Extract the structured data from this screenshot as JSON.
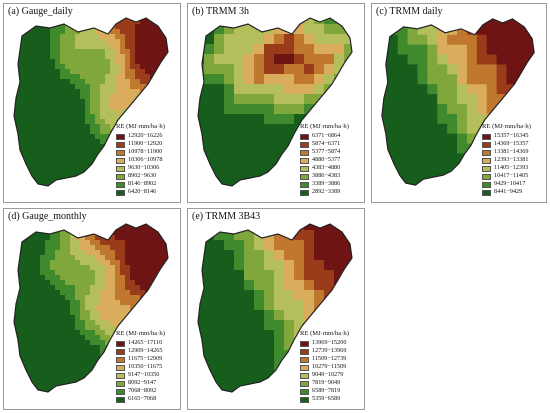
{
  "legend_title": "RE (MJ·mm/ha·h)",
  "panels": {
    "a": {
      "title": "(a)  Gauge_daily",
      "items": [
        {
          "label": "12920−16226",
          "color": "#6e1414"
        },
        {
          "label": "11900−12920",
          "color": "#9a3b1a"
        },
        {
          "label": "10978−11900",
          "color": "#c0772e"
        },
        {
          "label": "10306−10978",
          "color": "#d9ad5c"
        },
        {
          "label": "9630−10306",
          "color": "#b4bf5c"
        },
        {
          "label": "8902−9630",
          "color": "#7fa73c"
        },
        {
          "label": "8146−8902",
          "color": "#3f8a2c"
        },
        {
          "label": "6420−8146",
          "color": "#175e1c"
        }
      ]
    },
    "b": {
      "title": "(b)  TRMM 3h",
      "items": [
        {
          "label": "6371−6864",
          "color": "#6e1414"
        },
        {
          "label": "5874−6371",
          "color": "#9a3b1a"
        },
        {
          "label": "5377−5874",
          "color": "#c0772e"
        },
        {
          "label": "4880−5377",
          "color": "#d9ad5c"
        },
        {
          "label": "4383−4880",
          "color": "#b4bf5c"
        },
        {
          "label": "3886−4383",
          "color": "#7fa73c"
        },
        {
          "label": "3389−3886",
          "color": "#3f8a2c"
        },
        {
          "label": "2892−3389",
          "color": "#175e1c"
        }
      ]
    },
    "c": {
      "title": "(c)  TRMM daily",
      "items": [
        {
          "label": "15357−16345",
          "color": "#6e1414"
        },
        {
          "label": "14369−15357",
          "color": "#9a3b1a"
        },
        {
          "label": "13381−14369",
          "color": "#c0772e"
        },
        {
          "label": "12393−13381",
          "color": "#d9ad5c"
        },
        {
          "label": "11405−12393",
          "color": "#b4bf5c"
        },
        {
          "label": "10417−11405",
          "color": "#7fa73c"
        },
        {
          "label": "9429−10417",
          "color": "#3f8a2c"
        },
        {
          "label": "8441−9429",
          "color": "#175e1c"
        }
      ]
    },
    "d": {
      "title": "(d)  Gauge_monthly",
      "items": [
        {
          "label": "14265−17110",
          "color": "#6e1414"
        },
        {
          "label": "12909−14265",
          "color": "#9a3b1a"
        },
        {
          "label": "11675−12909",
          "color": "#c0772e"
        },
        {
          "label": "10350−11675",
          "color": "#d9ad5c"
        },
        {
          "label": "9147−10350",
          "color": "#b4bf5c"
        },
        {
          "label": "8092−9147",
          "color": "#7fa73c"
        },
        {
          "label": "7068−8092",
          "color": "#3f8a2c"
        },
        {
          "label": "6165−7068",
          "color": "#175e1c"
        }
      ]
    },
    "e": {
      "title": "(e)  TRMM 3B43",
      "items": [
        {
          "label": "13969−15200",
          "color": "#6e1414"
        },
        {
          "label": "12739−13969",
          "color": "#9a3b1a"
        },
        {
          "label": "11509−12739",
          "color": "#c0772e"
        },
        {
          "label": "10279−11509",
          "color": "#d9ad5c"
        },
        {
          "label": "9049−10279",
          "color": "#b4bf5c"
        },
        {
          "label": "7819−9049",
          "color": "#7fa73c"
        },
        {
          "label": "6589−7819",
          "color": "#3f8a2c"
        },
        {
          "label": "5359−6589",
          "color": "#175e1c"
        }
      ]
    }
  }
}
